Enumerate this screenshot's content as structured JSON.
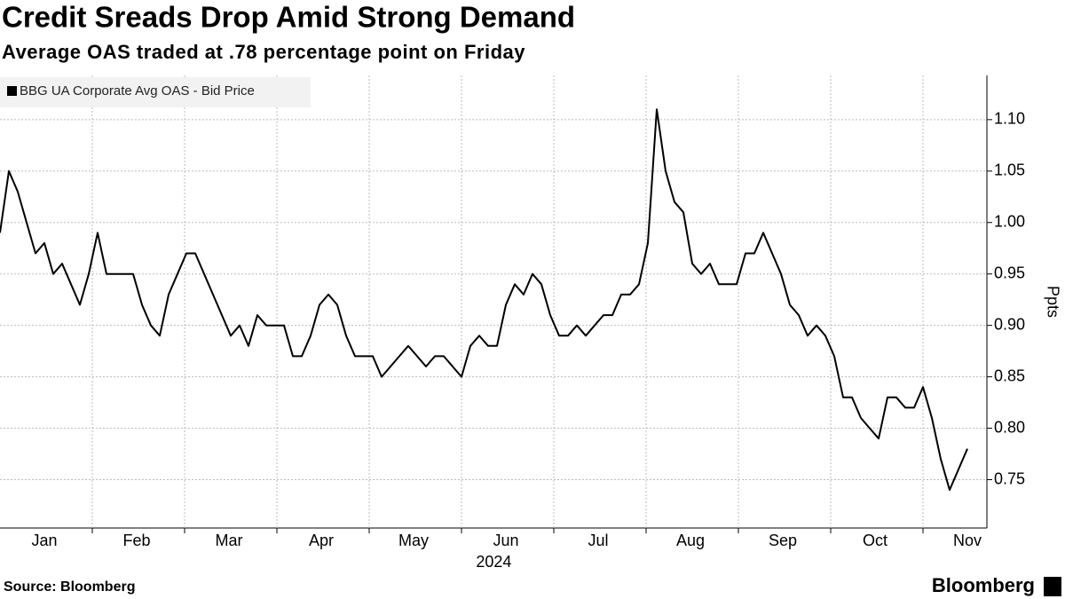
{
  "chart_data": {
    "type": "line",
    "title": "Credit Sreads Drop Amid Strong Demand",
    "subtitle": "Average OAS traded at .78 percentage point on Friday",
    "series": [
      {
        "name": "BBG UA Corporate Avg OAS - Bid Price",
        "color": "#000000",
        "values": [
          0.99,
          1.05,
          1.03,
          1.0,
          0.97,
          0.98,
          0.95,
          0.96,
          0.94,
          0.92,
          0.95,
          0.99,
          0.95,
          0.95,
          0.95,
          0.95,
          0.92,
          0.9,
          0.89,
          0.93,
          0.95,
          0.97,
          0.97,
          0.95,
          0.93,
          0.91,
          0.89,
          0.9,
          0.88,
          0.91,
          0.9,
          0.9,
          0.9,
          0.87,
          0.87,
          0.89,
          0.92,
          0.93,
          0.92,
          0.89,
          0.87,
          0.87,
          0.87,
          0.85,
          0.86,
          0.87,
          0.88,
          0.87,
          0.86,
          0.87,
          0.87,
          0.86,
          0.85,
          0.88,
          0.89,
          0.88,
          0.88,
          0.92,
          0.94,
          0.93,
          0.95,
          0.94,
          0.91,
          0.89,
          0.89,
          0.9,
          0.89,
          0.9,
          0.91,
          0.91,
          0.93,
          0.93,
          0.94,
          0.98,
          1.11,
          1.05,
          1.02,
          1.01,
          0.96,
          0.95,
          0.96,
          0.94,
          0.94,
          0.94,
          0.97,
          0.97,
          0.99,
          0.97,
          0.95,
          0.92,
          0.91,
          0.89,
          0.9,
          0.89,
          0.87,
          0.83,
          0.83,
          0.81,
          0.8,
          0.79,
          0.83,
          0.83,
          0.82,
          0.82,
          0.84,
          0.81,
          0.77,
          0.74,
          0.76,
          0.78
        ]
      }
    ],
    "x_labels": [
      "Jan",
      "Feb",
      "Mar",
      "Apr",
      "May",
      "Jun",
      "Jul",
      "Aug",
      "Sep",
      "Oct",
      "Nov"
    ],
    "x_sublabel": "2024",
    "y_label": "Ppts",
    "ylim": [
      0.703,
      1.143
    ],
    "yticks": [
      {
        "value": 0.75,
        "label": "0.75"
      },
      {
        "value": 0.8,
        "label": "0.80"
      },
      {
        "value": 0.85,
        "label": "0.85"
      },
      {
        "value": 0.9,
        "label": "0.90"
      },
      {
        "value": 0.95,
        "label": "0.95"
      },
      {
        "value": 1.0,
        "label": "1.00"
      },
      {
        "value": 1.05,
        "label": "1.05"
      },
      {
        "value": 1.1,
        "label": "1.10"
      }
    ],
    "grid": true,
    "legend": "top-left",
    "source": "Source: Bloomberg",
    "brand": "Bloomberg"
  }
}
